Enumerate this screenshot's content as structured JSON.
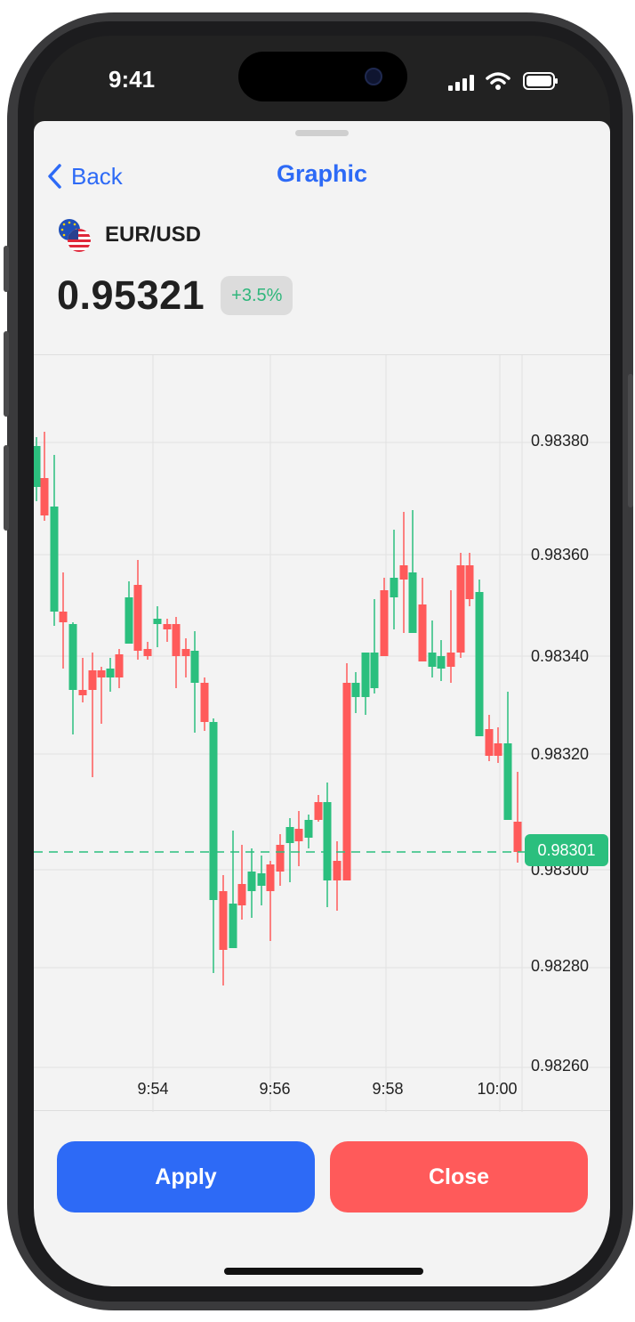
{
  "status_bar": {
    "time": "9:41"
  },
  "nav": {
    "back_label": "Back",
    "title": "Graphic"
  },
  "instrument": {
    "pair": "EUR/USD",
    "price": "0.95321",
    "change": "+3.5%",
    "change_color": "#2fb67b"
  },
  "colors": {
    "accent": "#2d6af6",
    "up": "#2bbf7e",
    "down": "#ff5a5a"
  },
  "chart_data": {
    "type": "candlestick",
    "x_ticks": [
      "9:54",
      "9:56",
      "9:58",
      "10:00"
    ],
    "y_ticks": [
      "0.98380",
      "0.98360",
      "0.98340",
      "0.98320",
      "0.98300",
      "0.98280",
      "0.98260"
    ],
    "last_price": "0.98301",
    "grid": true
  },
  "actions": {
    "apply_label": "Apply",
    "close_label": "Close"
  }
}
